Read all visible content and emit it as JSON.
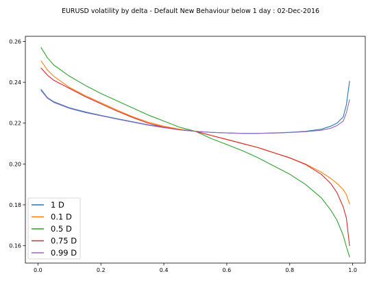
{
  "chart_data": {
    "type": "line",
    "title": "EURUSD  volatility by delta - Default New Behaviour below 1 day : 02-Dec-2016",
    "xlabel": "",
    "ylabel": "",
    "xlim": [
      -0.04,
      1.04
    ],
    "ylim": [
      0.1515,
      0.2625
    ],
    "xticks": [
      0.0,
      0.2,
      0.4,
      0.6,
      0.8,
      1.0
    ],
    "xtick_labels": [
      "0.0",
      "0.2",
      "0.4",
      "0.6",
      "0.8",
      "1.0"
    ],
    "yticks": [
      0.16,
      0.18,
      0.2,
      0.22,
      0.24,
      0.26
    ],
    "ytick_labels": [
      "0.16",
      "0.18",
      "0.20",
      "0.22",
      "0.24",
      "0.26"
    ],
    "grid": false,
    "legend_position": "lower-left",
    "x": [
      0.01,
      0.03,
      0.05,
      0.1,
      0.15,
      0.2,
      0.25,
      0.3,
      0.35,
      0.4,
      0.45,
      0.5,
      0.55,
      0.6,
      0.65,
      0.7,
      0.75,
      0.8,
      0.85,
      0.9,
      0.93,
      0.95,
      0.97,
      0.98,
      0.99
    ],
    "series": [
      {
        "name": "1 D",
        "color": "#1f77b4",
        "values": [
          0.2365,
          0.2325,
          0.2305,
          0.2275,
          0.2255,
          0.2238,
          0.2222,
          0.2207,
          0.2192,
          0.218,
          0.2168,
          0.216,
          0.2155,
          0.2152,
          0.215,
          0.215,
          0.2152,
          0.2155,
          0.216,
          0.217,
          0.2185,
          0.22,
          0.223,
          0.229,
          0.2405
        ]
      },
      {
        "name": "0.1 D",
        "color": "#ff7f0e",
        "values": [
          0.2505,
          0.246,
          0.243,
          0.2375,
          0.2335,
          0.23,
          0.2265,
          0.2232,
          0.2205,
          0.2185,
          0.217,
          0.216,
          0.214,
          0.212,
          0.21,
          0.208,
          0.2055,
          0.203,
          0.2,
          0.196,
          0.193,
          0.1905,
          0.1875,
          0.185,
          0.1805
        ]
      },
      {
        "name": "0.5 D",
        "color": "#2ca02c",
        "values": [
          0.257,
          0.252,
          0.2485,
          0.243,
          0.2385,
          0.2345,
          0.231,
          0.2275,
          0.224,
          0.221,
          0.218,
          0.216,
          0.2125,
          0.2095,
          0.2065,
          0.203,
          0.199,
          0.195,
          0.19,
          0.1835,
          0.1775,
          0.1725,
          0.165,
          0.1595,
          0.1545
        ]
      },
      {
        "name": "0.75 D",
        "color": "#d62728",
        "values": [
          0.247,
          0.2435,
          0.241,
          0.237,
          0.233,
          0.2295,
          0.226,
          0.2228,
          0.22,
          0.218,
          0.2168,
          0.216,
          0.214,
          0.212,
          0.21,
          0.208,
          0.2055,
          0.203,
          0.1998,
          0.195,
          0.1905,
          0.186,
          0.179,
          0.1735,
          0.16
        ]
      },
      {
        "name": "0.99 D",
        "color": "#9467bd",
        "values": [
          0.236,
          0.2322,
          0.2302,
          0.2272,
          0.2252,
          0.2236,
          0.222,
          0.2205,
          0.219,
          0.2178,
          0.2167,
          0.216,
          0.2155,
          0.2152,
          0.215,
          0.215,
          0.2151,
          0.2154,
          0.2158,
          0.2165,
          0.2175,
          0.2188,
          0.221,
          0.225,
          0.2315
        ]
      }
    ]
  }
}
